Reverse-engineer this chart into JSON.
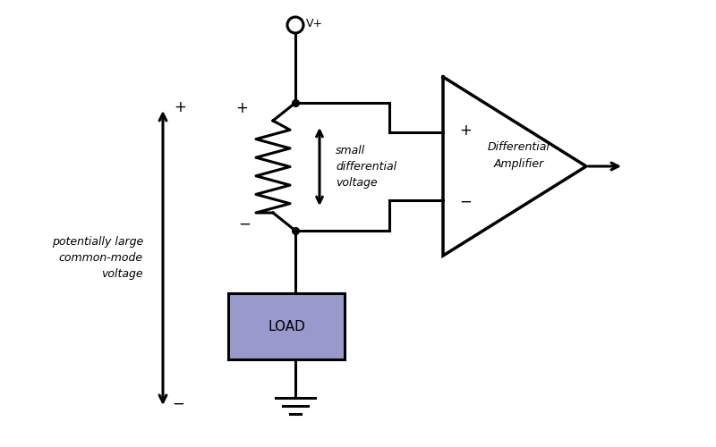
{
  "bg_color": "#ffffff",
  "line_color": "#000000",
  "load_fill": "#9999cc",
  "load_text": "LOAD",
  "resistor_label": "small\ndifferential\nvoltage",
  "diff_amp_label": "Differential\nAmplifier",
  "cm_voltage_label": "potentially large\ncommon-mode\nvoltage",
  "vplus_label": "V+",
  "plus_sign": "+",
  "minus_sign": "−",
  "lw": 2.2,
  "fig_w": 8.0,
  "fig_h": 5.0,
  "dpi": 100
}
